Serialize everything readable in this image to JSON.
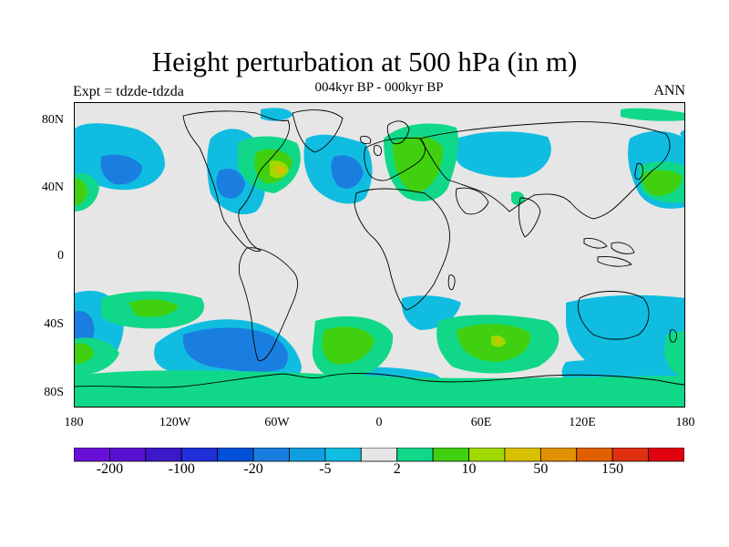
{
  "title": "Height perturbation at 500 hPa (in m)",
  "subtitle_center": "004kyr BP - 000kyr BP",
  "subtitle_left": "Expt = tdzde-tdzda",
  "subtitle_right": "ANN",
  "lat_ticks": [
    "80N",
    "40N",
    "0",
    "40S",
    "80S"
  ],
  "lon_ticks": [
    "180",
    "120W",
    "60W",
    "0",
    "60E",
    "120E",
    "180"
  ],
  "colorbar": {
    "colors": [
      "#6a0fd8",
      "#5a10d0",
      "#3b18c8",
      "#2030d8",
      "#0050d8",
      "#1a7ee0",
      "#109ee0",
      "#10bde0",
      "#e6e6e6",
      "#10d888",
      "#40d010",
      "#a0d800",
      "#d8c000",
      "#e09000",
      "#e06000",
      "#e03010",
      "#e00010"
    ],
    "labels": [
      "-200",
      "-100",
      "-20",
      "-5",
      "2",
      "10",
      "50",
      "150"
    ]
  },
  "colors": {
    "background": "#e6e6e6",
    "coast": "#000000"
  }
}
